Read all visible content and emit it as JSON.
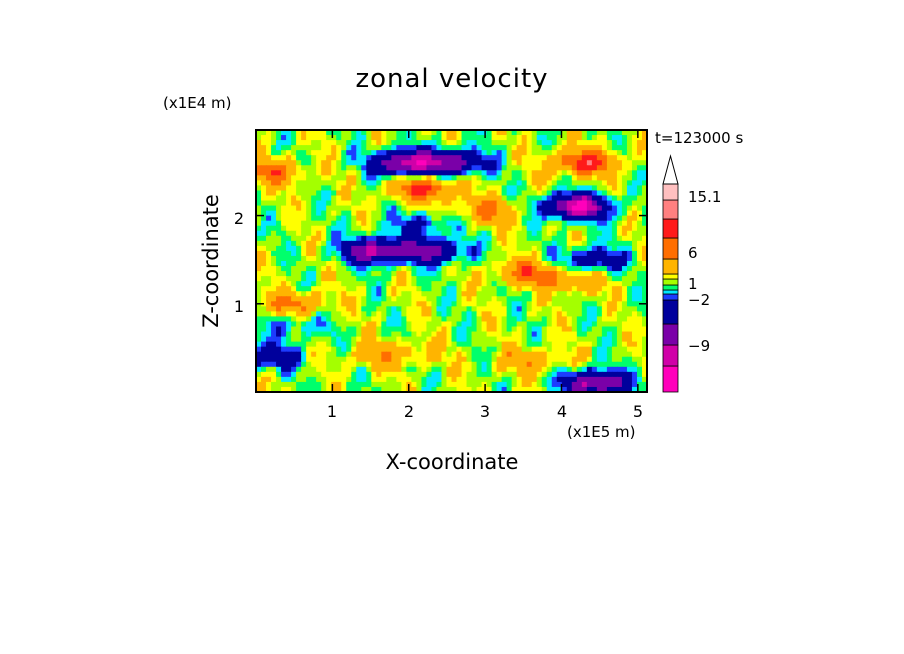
{
  "chart_data": {
    "type": "heatmap",
    "title": "zonal velocity",
    "xlabel": "X-coordinate",
    "ylabel": "Z-coordinate",
    "x_unit": "(x1E5 m)",
    "y_unit": "(x1E4 m)",
    "time_label": "t=123000 s",
    "x_ticks": [
      "1",
      "2",
      "3",
      "4",
      "5"
    ],
    "y_ticks": [
      "1",
      "2"
    ],
    "xlim": [
      0,
      5.12
    ],
    "ylim": [
      0,
      2.97
    ],
    "colorbar": {
      "labels": [
        "15.1",
        "6",
        "1",
        "−2",
        "−9"
      ],
      "label_values": [
        15.1,
        6,
        1,
        -2,
        -9
      ],
      "levels": [
        -16,
        -12,
        -9,
        -6,
        -2,
        -1,
        0,
        1,
        2,
        3,
        6,
        9,
        12,
        15.1
      ],
      "colors": [
        "#ff00bb",
        "#d000a8",
        "#7a00a8",
        "#00009c",
        "#1c3cff",
        "#00e8ff",
        "#00ff6c",
        "#a4ff00",
        "#ffff00",
        "#ffb400",
        "#ff6e00",
        "#ff1a1a",
        "#ff8080",
        "#ffc0c0"
      ],
      "over_color": "#ffffff"
    },
    "features": [
      {
        "x": 1.95,
        "y": 2.6,
        "v": -12
      },
      {
        "x": 2.6,
        "y": 2.6,
        "v": -9
      },
      {
        "x": 2.2,
        "y": 2.3,
        "v": 8
      },
      {
        "x": 3.05,
        "y": 2.05,
        "v": 5
      },
      {
        "x": 1.55,
        "y": 1.6,
        "v": -11
      },
      {
        "x": 2.3,
        "y": 1.6,
        "v": -9
      },
      {
        "x": 2.15,
        "y": 1.9,
        "v": -4
      },
      {
        "x": 4.2,
        "y": 2.1,
        "v": -14
      },
      {
        "x": 4.3,
        "y": 2.6,
        "v": 9
      },
      {
        "x": 3.55,
        "y": 1.35,
        "v": 6
      },
      {
        "x": 4.15,
        "y": 1.25,
        "v": 4
      },
      {
        "x": 4.4,
        "y": 1.5,
        "v": -6
      },
      {
        "x": 0.2,
        "y": 2.5,
        "v": 6
      },
      {
        "x": 0.5,
        "y": 1.0,
        "v": 5
      },
      {
        "x": 2.1,
        "y": 0.45,
        "v": 2.2
      },
      {
        "x": 1.55,
        "y": 0.4,
        "v": 2.5
      },
      {
        "x": 3.6,
        "y": 0.35,
        "v": 4
      },
      {
        "x": 4.45,
        "y": 0.1,
        "v": -12
      },
      {
        "x": 0.5,
        "y": 0.75,
        "v": -3
      },
      {
        "x": 0.15,
        "y": 0.4,
        "v": -6
      }
    ]
  }
}
